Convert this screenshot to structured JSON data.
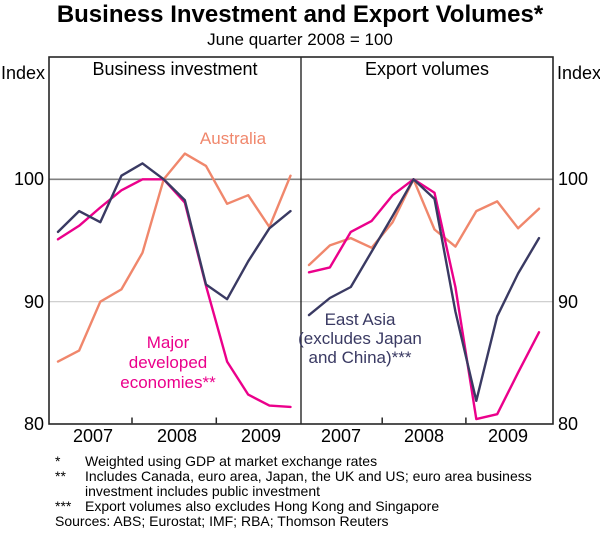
{
  "title": "Business Investment and Export Volumes*",
  "subtitle": "June quarter 2008 = 100",
  "y_axis": {
    "unit_label": "Index",
    "tick_labels": [
      "80",
      "90",
      "100"
    ]
  },
  "x_axis": {
    "years": [
      "2007",
      "2008",
      "2009"
    ]
  },
  "chart_data": [
    {
      "type": "line",
      "panel": "left",
      "title": "Business investment",
      "x": [
        "Mar-07",
        "Jun-07",
        "Sep-07",
        "Dec-07",
        "Mar-08",
        "Jun-08",
        "Sep-08",
        "Dec-08",
        "Mar-09",
        "Jun-09",
        "Sep-09",
        "Dec-09"
      ],
      "ylim": [
        80,
        110
      ],
      "yticks": [
        80,
        90,
        100
      ],
      "reference_line": 100,
      "index_base": "June quarter 2008 = 100",
      "series": [
        {
          "name": "Australia",
          "color": "#F0876C",
          "values": [
            85.1,
            86.0,
            90.0,
            91.0,
            94.0,
            100.0,
            102.1,
            101.1,
            98.0,
            98.7,
            96.1,
            100.3
          ]
        },
        {
          "name": "Major developed economies**",
          "color": "#EB008B",
          "values": [
            95.1,
            96.2,
            97.7,
            99.1,
            100.0,
            100.0,
            98.1,
            91.3,
            85.1,
            82.4,
            81.5,
            81.4
          ]
        },
        {
          "name": "East Asia (excludes Japan and China)***",
          "color": "#3A3A63",
          "values": [
            95.7,
            97.4,
            96.5,
            100.3,
            101.3,
            100.0,
            98.3,
            91.4,
            90.2,
            93.3,
            96.0,
            97.4
          ]
        }
      ]
    },
    {
      "type": "line",
      "panel": "right",
      "title": "Export volumes",
      "x": [
        "Mar-07",
        "Jun-07",
        "Sep-07",
        "Dec-07",
        "Mar-08",
        "Jun-08",
        "Sep-08",
        "Dec-08",
        "Mar-09",
        "Jun-09",
        "Sep-09",
        "Dec-09"
      ],
      "ylim": [
        80,
        110
      ],
      "yticks": [
        80,
        90,
        100
      ],
      "reference_line": 100,
      "index_base": "June quarter 2008 = 100",
      "series": [
        {
          "name": "Australia",
          "color": "#F0876C",
          "values": [
            93.0,
            94.6,
            95.2,
            94.4,
            96.5,
            100.0,
            95.9,
            94.5,
            97.4,
            98.2,
            96.0,
            97.6
          ]
        },
        {
          "name": "Major developed economies**",
          "color": "#EB008B",
          "values": [
            92.4,
            92.8,
            95.7,
            96.6,
            98.7,
            100.0,
            98.9,
            91.2,
            80.4,
            80.8,
            84.2,
            87.5
          ]
        },
        {
          "name": "East Asia (excludes Japan and China)***",
          "color": "#3A3A63",
          "values": [
            88.9,
            90.3,
            91.2,
            94.1,
            97.0,
            100.0,
            98.4,
            89.2,
            81.9,
            88.8,
            92.3,
            95.2
          ]
        }
      ]
    }
  ],
  "annotations": {
    "australia": {
      "text": "Australia",
      "color": "#F0876C"
    },
    "major_developed": {
      "lines": [
        "Major",
        "developed",
        "economies**"
      ],
      "color": "#EB008B"
    },
    "east_asia": {
      "lines": [
        "East Asia",
        "(excludes Japan",
        "and China)***"
      ],
      "color": "#3A3A63"
    }
  },
  "colors": {
    "australia": "#F0876C",
    "major_developed": "#EB008B",
    "east_asia": "#3A3A63",
    "reference_gridline": "#808080",
    "minor_gridline": "#C9C9C9",
    "axis": "#262626"
  },
  "footnotes": [
    {
      "marker": "*",
      "text": "Weighted using GDP at market exchange rates"
    },
    {
      "marker": "**",
      "text": "Includes Canada, euro area, Japan, the UK and US; euro area business investment includes public investment"
    },
    {
      "marker": "***",
      "text": "Export volumes also excludes Hong Kong and Singapore"
    }
  ],
  "sources": "Sources: ABS; Eurostat; IMF; RBA; Thomson Reuters"
}
